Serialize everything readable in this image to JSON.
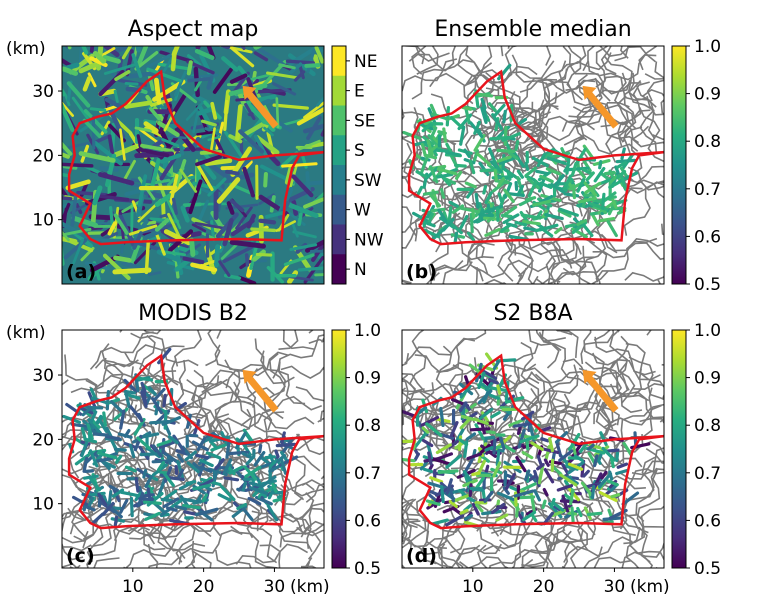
{
  "figure": {
    "panels": [
      {
        "id": "a",
        "title": "Aspect map",
        "label": "(a)",
        "y_unit": "(km)",
        "x_unit": "",
        "colorbar": {
          "type": "categorical",
          "colormap": "viridis",
          "ticks": [
            "NE",
            "E",
            "SE",
            "S",
            "SW",
            "W",
            "NW",
            "N"
          ]
        }
      },
      {
        "id": "b",
        "title": "Ensemble median",
        "label": "(b)",
        "y_unit": "",
        "x_unit": "",
        "colorbar": {
          "type": "continuous",
          "colormap": "viridis",
          "range": [
            0.5,
            1.0
          ],
          "ticks": [
            "1.0",
            "0.9",
            "0.8",
            "0.7",
            "0.6",
            "0.5"
          ]
        }
      },
      {
        "id": "c",
        "title": "MODIS B2",
        "label": "(c)",
        "y_unit": "(km)",
        "x_unit": "(km)",
        "colorbar": {
          "type": "continuous",
          "colormap": "viridis",
          "range": [
            0.5,
            1.0
          ],
          "ticks": [
            "1.0",
            "0.9",
            "0.8",
            "0.7",
            "0.6",
            "0.5"
          ]
        }
      },
      {
        "id": "d",
        "title": "S2 B8A",
        "label": "(d)",
        "y_unit": "",
        "x_unit": "(km)",
        "colorbar": {
          "type": "continuous",
          "colormap": "viridis",
          "range": [
            0.5,
            1.0
          ],
          "ticks": [
            "1.0",
            "0.9",
            "0.8",
            "0.7",
            "0.6",
            "0.5"
          ]
        }
      }
    ],
    "colors": {
      "outline": "#e8141c",
      "arrow": "#f5972a",
      "contour": "#7a7a7a"
    }
  },
  "chart_data": [
    {
      "type": "heatmap",
      "title": "Aspect map",
      "x_ticks": [],
      "y_ticks": [
        10,
        20,
        30
      ],
      "ylabel": "(km)",
      "xlim": [
        0,
        37
      ],
      "ylim": [
        0,
        37
      ],
      "grid": false,
      "colorbar_categories": [
        "NE",
        "E",
        "SE",
        "S",
        "SW",
        "W",
        "NW",
        "N"
      ],
      "overlay": [
        "catchment outline (red)",
        "flow arrow (orange)"
      ]
    },
    {
      "type": "heatmap",
      "title": "Ensemble median",
      "x_ticks": [],
      "y_ticks": [],
      "xlim": [
        0,
        37
      ],
      "ylim": [
        0,
        37
      ],
      "grid": false,
      "colorbar_range": [
        0.5,
        1.0
      ],
      "colorbar_ticks": [
        1.0,
        0.9,
        0.8,
        0.7,
        0.6,
        0.5
      ],
      "overlay": [
        "catchment outline (red)",
        "elevation contours (grey)",
        "flow arrow (orange)"
      ]
    },
    {
      "type": "heatmap",
      "title": "MODIS B2",
      "x_ticks": [
        10,
        20,
        30
      ],
      "y_ticks": [
        10,
        20,
        30
      ],
      "xlabel": "(km)",
      "ylabel": "(km)",
      "xlim": [
        0,
        37
      ],
      "ylim": [
        0,
        37
      ],
      "grid": false,
      "colorbar_range": [
        0.5,
        1.0
      ],
      "colorbar_ticks": [
        1.0,
        0.9,
        0.8,
        0.7,
        0.6,
        0.5
      ],
      "overlay": [
        "catchment outline (red)",
        "elevation contours (grey)",
        "flow arrow (orange)"
      ]
    },
    {
      "type": "heatmap",
      "title": "S2 B8A",
      "x_ticks": [
        10,
        20,
        30
      ],
      "y_ticks": [],
      "xlabel": "(km)",
      "xlim": [
        0,
        37
      ],
      "ylim": [
        0,
        37
      ],
      "grid": false,
      "colorbar_range": [
        0.5,
        1.0
      ],
      "colorbar_ticks": [
        1.0,
        0.9,
        0.8,
        0.7,
        0.6,
        0.5
      ],
      "overlay": [
        "catchment outline (red)",
        "elevation contours (grey)",
        "flow arrow (orange)"
      ]
    }
  ]
}
